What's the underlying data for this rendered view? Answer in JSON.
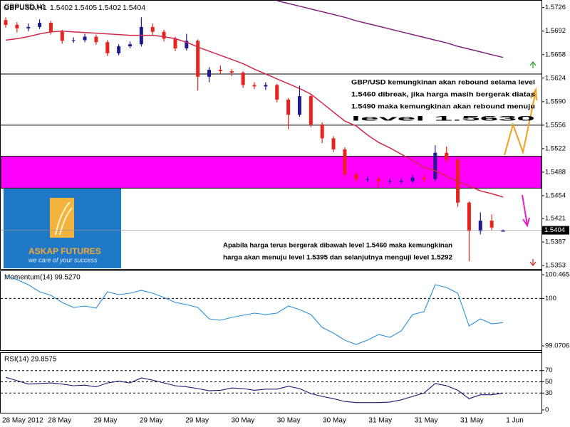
{
  "chart_data": [
    {
      "type": "candlestick",
      "title": "GBPUSD,H1",
      "open": [
        1.5708,
        1.5701,
        1.5696,
        1.5698,
        1.5704,
        1.5691,
        1.5678,
        1.5679,
        1.5684,
        1.5676,
        1.566,
        1.567,
        1.5673,
        1.5698,
        1.5691,
        1.5681,
        1.5667,
        1.5678,
        1.5626,
        1.5636,
        1.5634,
        1.5632,
        1.5614,
        1.5612,
        1.5614,
        1.5593,
        1.5571,
        1.5598,
        1.5557,
        1.5537,
        1.5521,
        1.5485,
        1.5478,
        1.5478,
        1.5475,
        1.5475,
        1.5475,
        1.548,
        1.5478,
        1.5516,
        1.5506,
        1.5444,
        1.5403,
        1.5418,
        1.5402
      ],
      "high": [
        1.5712,
        1.5705,
        1.5703,
        1.5709,
        1.5707,
        1.5694,
        1.5683,
        1.5688,
        1.5687,
        1.5679,
        1.5673,
        1.5677,
        1.5712,
        1.5703,
        1.5694,
        1.5684,
        1.5688,
        1.568,
        1.564,
        1.5642,
        1.5637,
        1.5634,
        1.5618,
        1.5618,
        1.5616,
        1.5595,
        1.5613,
        1.56,
        1.556,
        1.554,
        1.5524,
        1.5488,
        1.5482,
        1.5481,
        1.5479,
        1.5479,
        1.5484,
        1.5485,
        1.5527,
        1.5525,
        1.551,
        1.5446,
        1.543,
        1.5427,
        1.5405
      ],
      "low": [
        1.5697,
        1.569,
        1.5692,
        1.5695,
        1.5687,
        1.5674,
        1.5675,
        1.5676,
        1.5672,
        1.5656,
        1.5657,
        1.5667,
        1.567,
        1.5686,
        1.5677,
        1.5663,
        1.5664,
        1.5606,
        1.5618,
        1.563,
        1.5627,
        1.561,
        1.5608,
        1.5607,
        1.5589,
        1.555,
        1.5568,
        1.5553,
        1.553,
        1.5517,
        1.548,
        1.5474,
        1.5474,
        1.5466,
        1.5471,
        1.5471,
        1.5472,
        1.5474,
        1.5475,
        1.5502,
        1.5438,
        1.5359,
        1.5398,
        1.5404,
        1.5402
      ],
      "close": [
        1.5701,
        1.5696,
        1.5698,
        1.5704,
        1.5691,
        1.5678,
        1.5679,
        1.5684,
        1.5676,
        1.566,
        1.567,
        1.5673,
        1.5698,
        1.5691,
        1.5681,
        1.5667,
        1.5678,
        1.5626,
        1.5636,
        1.5634,
        1.5632,
        1.5614,
        1.5612,
        1.5614,
        1.5593,
        1.5571,
        1.5598,
        1.5557,
        1.5537,
        1.5521,
        1.5485,
        1.5478,
        1.5478,
        1.5475,
        1.5475,
        1.5475,
        1.548,
        1.5478,
        1.5516,
        1.5506,
        1.5444,
        1.5403,
        1.5418,
        1.5408,
        1.5404
      ],
      "up_color": "#1c1c8c",
      "down_color": "#e8231e",
      "series": [
        {
          "color": "#d0284a",
          "values": [
            1.5679,
            1.5681,
            1.5684,
            1.5688,
            1.5691,
            1.5692,
            1.5691,
            1.569,
            1.5689,
            1.5688,
            1.5687,
            1.5686,
            1.5686,
            1.5686,
            1.5684,
            1.5681,
            1.5676,
            1.5669,
            1.5663,
            1.5657,
            1.5651,
            1.5645,
            1.5637,
            1.563,
            1.5623,
            1.5616,
            1.5609,
            1.5601,
            1.5588,
            1.5575,
            1.5562,
            1.5555,
            1.5542,
            1.5531,
            1.5523,
            1.5514,
            1.5505,
            1.5495,
            1.549,
            1.5482,
            1.5475,
            1.5468,
            1.5461,
            1.5457,
            1.5452
          ]
        },
        {
          "color": "#80207f",
          "values": [
            null,
            null,
            null,
            null,
            null,
            null,
            null,
            null,
            null,
            null,
            null,
            null,
            null,
            null,
            null,
            null,
            null,
            null,
            null,
            null,
            null,
            null,
            null,
            null,
            1.5736,
            1.5732,
            1.5728,
            1.5724,
            1.572,
            1.5716,
            1.5712,
            1.5707,
            1.5703,
            1.5699,
            1.5695,
            1.5691,
            1.5687,
            1.5683,
            1.5679,
            1.5675,
            1.567,
            1.5666,
            1.5662,
            1.5658,
            1.5654
          ]
        }
      ],
      "levels": [
        1.563,
        1.5556
      ],
      "zone": [
        1.5465,
        1.5511
      ],
      "zone_color": "#ff00ff",
      "ylim": [
        1.5348,
        1.5737
      ],
      "yticks": [
        1.5726,
        1.5692,
        1.5658,
        1.5624,
        {
          "value": 1.559,
          "label": "1.5590"
        },
        1.5556,
        1.5522,
        1.5488,
        1.5454,
        1.5421,
        1.5387,
        1.5353
      ],
      "annotations": [
        [
          "GBP/USD kemungkinan akan rebound selama level",
          "1.5460 dibreak, jika harga masih bergerak diatas",
          "1.5490 maka kemungkinan akan rebound menuju",
          "level 1.5630"
        ],
        [
          "Apabila harga terus bergerak dibawah level 1.5460 maka kemungkinan",
          "harga akan menuju level 1.5395 dan selanjutnya menguji level 1.5292"
        ]
      ],
      "logo": {
        "title": "ASKAP FUTURES",
        "tagline": "we care of your success"
      },
      "x_labels": [
        "28 May 2012",
        "28 May",
        "29 May",
        "29 May",
        "29 May",
        "30 May",
        "30 May",
        "30 May",
        "31 May",
        "31 May",
        "31 May",
        "1 Jun"
      ]
    },
    {
      "type": "line",
      "title": "Momentum(14) 99.5270",
      "color": "#2e8fd6",
      "values": [
        100.451,
        100.368,
        100.27,
        100.131,
        100.061,
        99.921,
        99.824,
        99.852,
        99.81,
        100.131,
        100.075,
        100.103,
        100.159,
        100.103,
        100.019,
        99.921,
        99.88,
        99.824,
        99.601,
        99.573,
        99.629,
        99.671,
        99.712,
        99.684,
        99.712,
        99.852,
        99.782,
        99.684,
        99.433,
        99.322,
        99.182,
        99.098,
        99.182,
        99.294,
        99.238,
        99.364,
        99.684,
        99.74,
        100.27,
        100.214,
        100.103,
        99.461,
        99.601,
        99.503,
        99.527
      ],
      "levels": [
        100
      ],
      "ylim": [
        99.0706,
        100.4654
      ],
      "yticks": [
        99.0706,
        100,
        100.4654
      ]
    },
    {
      "type": "line",
      "title": "RSI(14) 29.8575",
      "color": "#1a1a70",
      "values": [
        58,
        52,
        46,
        47,
        48,
        46,
        43,
        44,
        41,
        48,
        51,
        48,
        57,
        53,
        48,
        43,
        41,
        38,
        34,
        35,
        39,
        38,
        35,
        37,
        37,
        42,
        38,
        29,
        24,
        20,
        15,
        13,
        13,
        13,
        14,
        18,
        24,
        30,
        47,
        43,
        35,
        20,
        27,
        27,
        29.86
      ],
      "levels": [
        30,
        50,
        70
      ],
      "ylim": [
        0,
        100
      ],
      "yticks": [
        0,
        30,
        50,
        70
      ]
    }
  ]
}
